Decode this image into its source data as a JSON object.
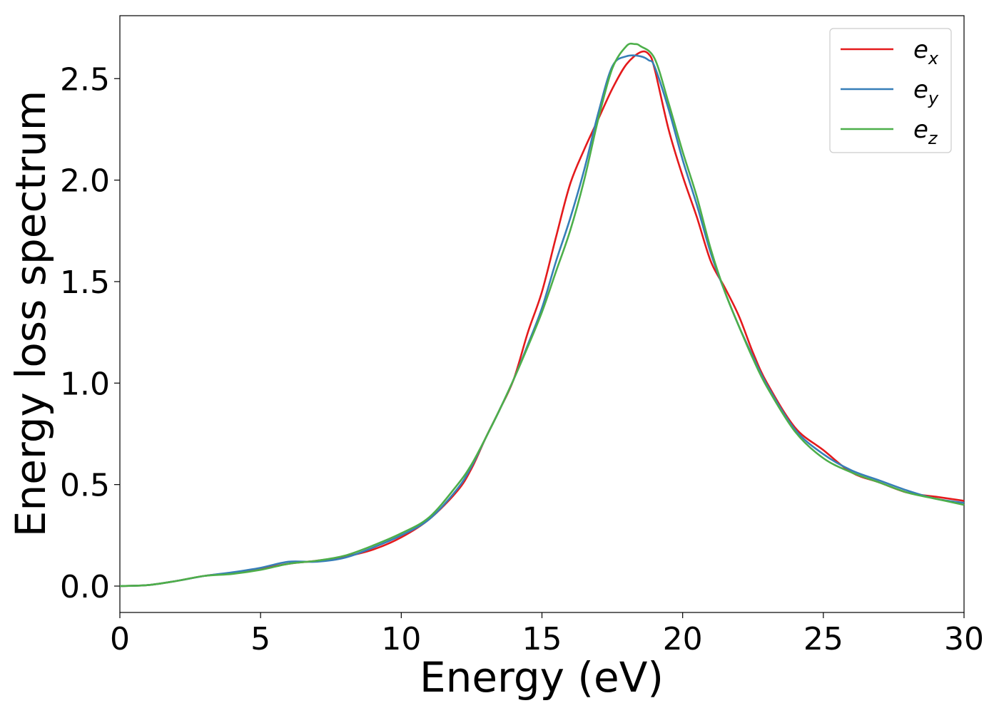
{
  "chart_data": {
    "type": "line",
    "title": "",
    "xlabel": "Energy (eV)",
    "ylabel": "Energy loss spectrum",
    "xlim": [
      0,
      30
    ],
    "ylim": [
      -0.13,
      2.81
    ],
    "xticks": [
      0,
      5,
      10,
      15,
      20,
      25,
      30
    ],
    "xtick_labels": [
      "0",
      "5",
      "10",
      "15",
      "20",
      "25",
      "30"
    ],
    "yticks": [
      0.0,
      0.5,
      1.0,
      1.5,
      2.0,
      2.5
    ],
    "ytick_labels": [
      "0.0",
      "0.5",
      "1.0",
      "1.5",
      "2.0",
      "2.5"
    ],
    "grid": false,
    "legend_position": "top-right",
    "series": [
      {
        "name": "e_x",
        "label_base": "e",
        "label_sub": "x",
        "color": "#e41a1c",
        "x": [
          0,
          1,
          2,
          3,
          4,
          5,
          6,
          7,
          8,
          9,
          10,
          11,
          12,
          12.5,
          13,
          13.5,
          14,
          14.5,
          15,
          15.5,
          16,
          16.5,
          17,
          17.5,
          18,
          18.5,
          18.8,
          19,
          19.5,
          20,
          20.5,
          21,
          21.5,
          22,
          22.5,
          23,
          24,
          25,
          26,
          27,
          28,
          29,
          30
        ],
        "y": [
          0.0,
          0.005,
          0.025,
          0.05,
          0.065,
          0.085,
          0.11,
          0.125,
          0.145,
          0.18,
          0.24,
          0.33,
          0.47,
          0.58,
          0.73,
          0.87,
          1.02,
          1.25,
          1.45,
          1.72,
          1.98,
          2.15,
          2.3,
          2.45,
          2.57,
          2.63,
          2.62,
          2.55,
          2.25,
          2.02,
          1.82,
          1.6,
          1.47,
          1.33,
          1.15,
          1.0,
          0.78,
          0.67,
          0.56,
          0.51,
          0.46,
          0.44,
          0.42
        ]
      },
      {
        "name": "e_y",
        "label_base": "e",
        "label_sub": "y",
        "color": "#377eb8",
        "x": [
          0,
          1,
          2,
          3,
          4,
          5,
          6,
          7,
          8,
          9,
          10,
          11,
          12,
          12.5,
          13,
          13.5,
          14,
          14.5,
          15,
          15.5,
          16,
          16.5,
          17,
          17.5,
          18,
          18.5,
          18.8,
          19,
          19.5,
          20,
          20.5,
          21,
          21.5,
          22,
          22.5,
          23,
          24,
          25,
          26,
          27,
          28,
          29,
          30
        ],
        "y": [
          0.0,
          0.005,
          0.025,
          0.05,
          0.068,
          0.09,
          0.12,
          0.12,
          0.14,
          0.19,
          0.25,
          0.33,
          0.48,
          0.59,
          0.73,
          0.87,
          1.02,
          1.19,
          1.37,
          1.6,
          1.81,
          2.05,
          2.33,
          2.56,
          2.61,
          2.61,
          2.59,
          2.56,
          2.35,
          2.1,
          1.88,
          1.64,
          1.45,
          1.28,
          1.13,
          0.99,
          0.77,
          0.65,
          0.57,
          0.52,
          0.47,
          0.43,
          0.41
        ]
      },
      {
        "name": "e_z",
        "label_base": "e",
        "label_sub": "z",
        "color": "#4daf4a",
        "x": [
          0,
          1,
          2,
          3,
          4,
          5,
          6,
          7,
          8,
          9,
          10,
          11,
          12,
          12.5,
          13,
          13.5,
          14,
          14.5,
          15,
          15.5,
          16,
          16.5,
          17,
          17.5,
          18,
          18.3,
          18.5,
          19,
          19.5,
          20,
          20.5,
          21,
          21.5,
          22,
          22.5,
          23,
          24,
          25,
          26,
          27,
          28,
          29,
          30
        ],
        "y": [
          0.0,
          0.005,
          0.025,
          0.05,
          0.06,
          0.08,
          0.11,
          0.125,
          0.15,
          0.2,
          0.26,
          0.34,
          0.5,
          0.6,
          0.73,
          0.87,
          1.02,
          1.18,
          1.35,
          1.55,
          1.75,
          2.0,
          2.3,
          2.55,
          2.66,
          2.67,
          2.66,
          2.6,
          2.38,
          2.14,
          1.92,
          1.66,
          1.45,
          1.28,
          1.12,
          0.98,
          0.76,
          0.63,
          0.56,
          0.51,
          0.46,
          0.43,
          0.4
        ]
      }
    ]
  }
}
